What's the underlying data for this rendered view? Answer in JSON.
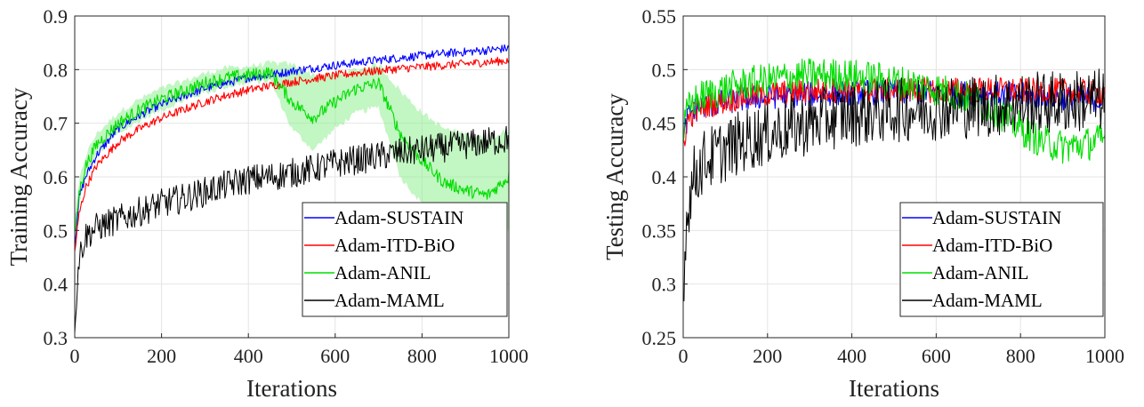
{
  "chart_data": [
    {
      "type": "line",
      "xlabel": "Iterations",
      "ylabel": "Training Accuracy",
      "xlim": [
        0,
        1000
      ],
      "ylim": [
        0.3,
        0.9
      ],
      "xticks": [
        "0",
        "200",
        "400",
        "600",
        "800",
        "1000"
      ],
      "yticks": [
        "0.3",
        "0.4",
        "0.5",
        "0.6",
        "0.7",
        "0.8",
        "0.9"
      ],
      "grid": true,
      "legend_position": "bottom-right",
      "x": [
        0,
        10,
        25,
        50,
        100,
        150,
        200,
        250,
        300,
        350,
        400,
        450,
        500,
        550,
        600,
        650,
        700,
        750,
        800,
        850,
        900,
        950,
        1000
      ],
      "series": [
        {
          "name": "Adam-SUSTAIN",
          "color": "#0000ff",
          "values": [
            0.47,
            0.56,
            0.6,
            0.64,
            0.69,
            0.715,
            0.735,
            0.75,
            0.765,
            0.775,
            0.785,
            0.79,
            0.797,
            0.803,
            0.808,
            0.813,
            0.818,
            0.822,
            0.826,
            0.83,
            0.833,
            0.836,
            0.84
          ]
        },
        {
          "name": "Adam-ITD-BiO",
          "color": "#ff0000",
          "values": [
            0.46,
            0.53,
            0.58,
            0.62,
            0.665,
            0.69,
            0.71,
            0.725,
            0.74,
            0.752,
            0.762,
            0.77,
            0.777,
            0.783,
            0.789,
            0.794,
            0.798,
            0.802,
            0.805,
            0.808,
            0.811,
            0.814,
            0.817
          ]
        },
        {
          "name": "Adam-ANIL",
          "color": "#00dd00",
          "band_color": "#90ee90",
          "values": [
            0.49,
            0.57,
            0.62,
            0.66,
            0.7,
            0.725,
            0.745,
            0.76,
            0.775,
            0.785,
            0.79,
            0.795,
            0.74,
            0.71,
            0.74,
            0.765,
            0.775,
            0.68,
            0.63,
            0.59,
            0.575,
            0.565,
            0.6
          ],
          "band_low": [
            0.47,
            0.55,
            0.6,
            0.64,
            0.68,
            0.705,
            0.725,
            0.742,
            0.757,
            0.768,
            0.775,
            0.78,
            0.69,
            0.65,
            0.69,
            0.72,
            0.73,
            0.6,
            0.55,
            0.52,
            0.51,
            0.5,
            0.5
          ],
          "band_high": [
            0.51,
            0.59,
            0.64,
            0.68,
            0.72,
            0.745,
            0.765,
            0.778,
            0.793,
            0.803,
            0.806,
            0.812,
            0.81,
            0.79,
            0.79,
            0.8,
            0.81,
            0.76,
            0.72,
            0.69,
            0.68,
            0.67,
            0.69
          ]
        },
        {
          "name": "Adam-MAML",
          "color": "#000000",
          "values": [
            0.33,
            0.45,
            0.49,
            0.505,
            0.52,
            0.535,
            0.55,
            0.56,
            0.572,
            0.585,
            0.595,
            0.6,
            0.607,
            0.615,
            0.625,
            0.632,
            0.638,
            0.645,
            0.65,
            0.655,
            0.66,
            0.665,
            0.67
          ]
        }
      ]
    },
    {
      "type": "line",
      "xlabel": "Iterations",
      "ylabel": "Testing Accuracy",
      "xlim": [
        0,
        1000
      ],
      "ylim": [
        0.25,
        0.55
      ],
      "xticks": [
        "0",
        "200",
        "400",
        "600",
        "800",
        "1000"
      ],
      "yticks": [
        "0.25",
        "0.3",
        "0.35",
        "0.4",
        "0.45",
        "0.5",
        "0.55"
      ],
      "grid": true,
      "legend_position": "bottom-right",
      "x": [
        0,
        10,
        25,
        50,
        100,
        150,
        200,
        250,
        300,
        350,
        400,
        450,
        500,
        550,
        600,
        650,
        700,
        750,
        800,
        850,
        900,
        950,
        1000
      ],
      "series": [
        {
          "name": "Adam-SUSTAIN",
          "color": "#0000ff",
          "values": [
            0.43,
            0.455,
            0.462,
            0.466,
            0.47,
            0.473,
            0.475,
            0.476,
            0.477,
            0.478,
            0.479,
            0.479,
            0.479,
            0.479,
            0.479,
            0.478,
            0.478,
            0.477,
            0.476,
            0.475,
            0.474,
            0.473,
            0.472
          ]
        },
        {
          "name": "Adam-ITD-BiO",
          "color": "#ff0000",
          "values": [
            0.43,
            0.452,
            0.46,
            0.466,
            0.471,
            0.475,
            0.477,
            0.479,
            0.48,
            0.481,
            0.481,
            0.481,
            0.481,
            0.481,
            0.481,
            0.481,
            0.481,
            0.481,
            0.48,
            0.48,
            0.48,
            0.479,
            0.479
          ]
        },
        {
          "name": "Adam-ANIL",
          "color": "#00dd00",
          "values": [
            0.44,
            0.462,
            0.47,
            0.476,
            0.482,
            0.487,
            0.49,
            0.493,
            0.495,
            0.495,
            0.494,
            0.492,
            0.489,
            0.486,
            0.482,
            0.477,
            0.47,
            0.46,
            0.445,
            0.433,
            0.428,
            0.43,
            0.435
          ]
        },
        {
          "name": "Adam-MAML",
          "color": "#000000",
          "values": [
            0.3,
            0.37,
            0.4,
            0.415,
            0.425,
            0.435,
            0.44,
            0.445,
            0.45,
            0.455,
            0.458,
            0.46,
            0.462,
            0.463,
            0.464,
            0.465,
            0.466,
            0.467,
            0.468,
            0.469,
            0.47,
            0.471,
            0.472
          ]
        }
      ]
    }
  ]
}
